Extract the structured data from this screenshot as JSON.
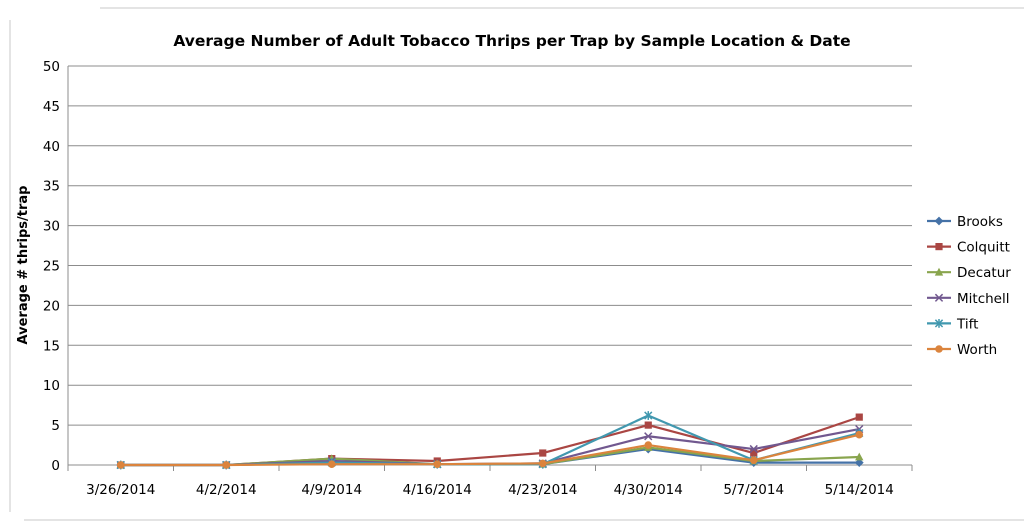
{
  "chart_data": {
    "type": "line",
    "title": "Average Number of Adult Tobacco Thrips per Trap by Sample Location & Date",
    "xlabel": "",
    "ylabel": "Average # thrips/trap",
    "ylim": [
      0,
      50
    ],
    "yticks": [
      0,
      5,
      10,
      15,
      20,
      25,
      30,
      35,
      40,
      45,
      50
    ],
    "grid": true,
    "legend_position": "right",
    "categories": [
      "3/26/2014",
      "4/2/2014",
      "4/9/2014",
      "4/16/2014",
      "4/23/2014",
      "4/30/2014",
      "5/7/2014",
      "5/14/2014"
    ],
    "series": [
      {
        "name": "Brooks",
        "color": "#4572A7",
        "marker": "diamond",
        "values": [
          0,
          0,
          0.3,
          0.1,
          0.1,
          2.0,
          0.3,
          0.3
        ]
      },
      {
        "name": "Colquitt",
        "color": "#AA4643",
        "marker": "square",
        "values": [
          0,
          0,
          0.8,
          0.5,
          1.5,
          5.0,
          1.5,
          6.0
        ]
      },
      {
        "name": "Decatur",
        "color": "#89A54E",
        "marker": "triangle",
        "values": [
          0,
          0,
          0.8,
          0.1,
          0.1,
          2.2,
          0.5,
          1.0
        ]
      },
      {
        "name": "Mitchell",
        "color": "#71588F",
        "marker": "x",
        "values": [
          0,
          0,
          0.5,
          0.1,
          0.2,
          3.6,
          2.0,
          4.5
        ]
      },
      {
        "name": "Tift",
        "color": "#4198AF",
        "marker": "star",
        "values": [
          0,
          0,
          0.3,
          0.1,
          0.1,
          6.2,
          0.6,
          4.0
        ]
      },
      {
        "name": "Worth",
        "color": "#DB843D",
        "marker": "circle",
        "values": [
          0,
          0,
          0.1,
          0.1,
          0.2,
          2.5,
          0.6,
          3.8
        ]
      }
    ]
  }
}
